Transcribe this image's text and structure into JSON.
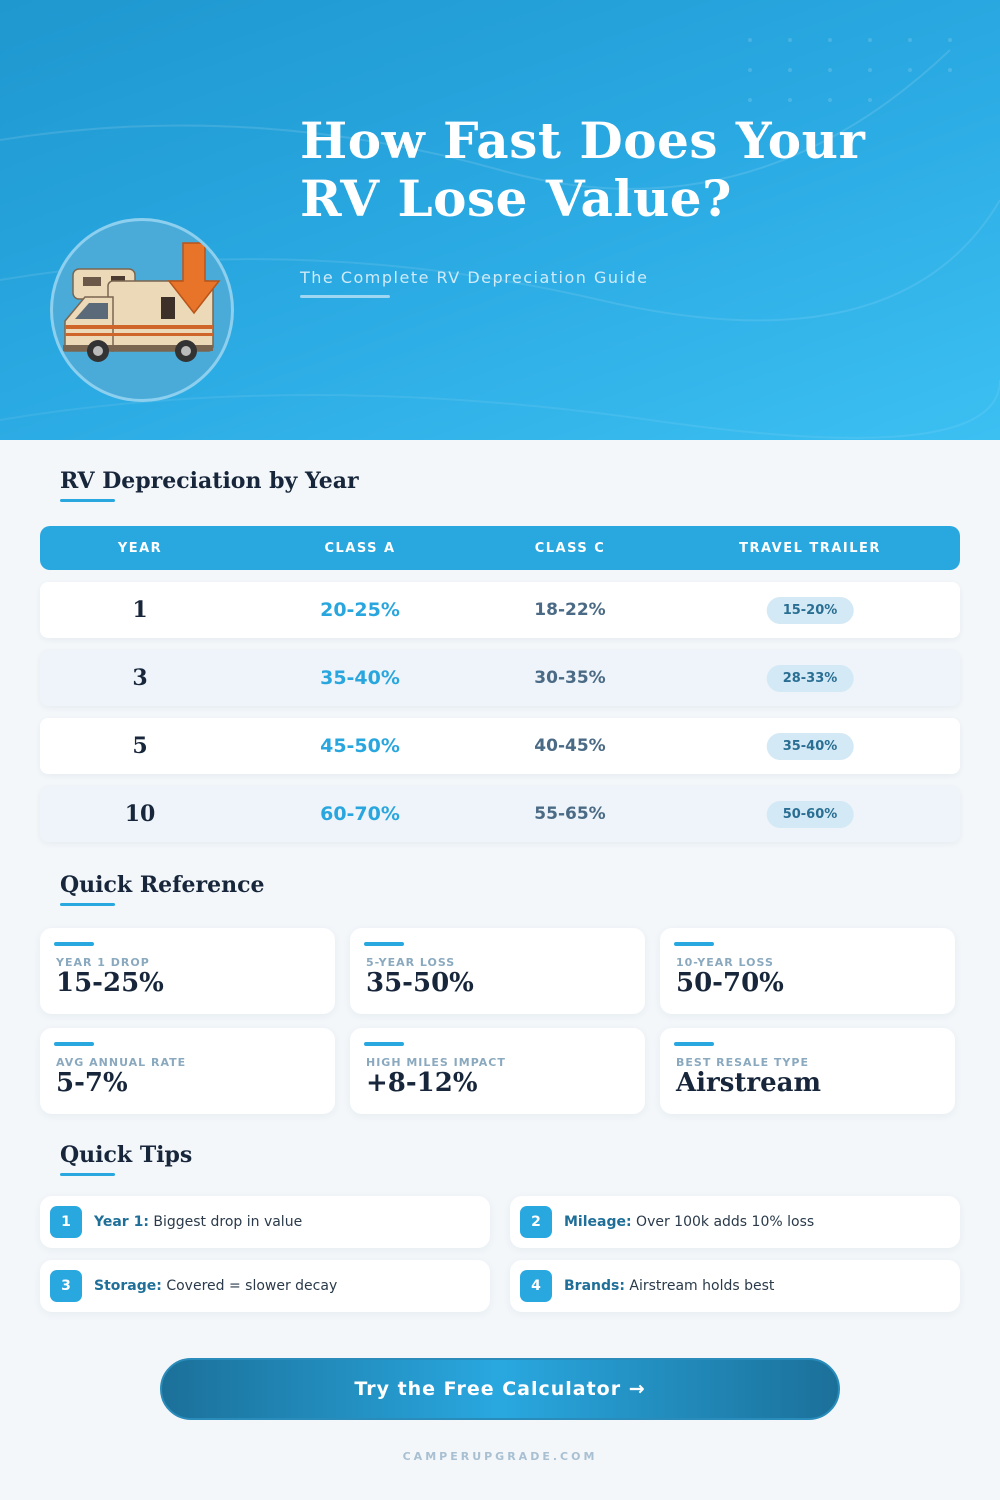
{
  "hero": {
    "title_line1": "How Fast Does Your",
    "title_line2": "RV Lose Value?",
    "subtitle": "The Complete RV Depreciation Guide",
    "illustration_icon": "rv-with-down-arrow-icon"
  },
  "table_section": {
    "title": "RV Depreciation by Year",
    "headers": [
      "YEAR",
      "CLASS A",
      "CLASS C",
      "TRAVEL TRAILER"
    ],
    "rows": [
      {
        "year": "1",
        "class_a": "20-25%",
        "class_c": "18-22%",
        "travel_trailer": "15-20%"
      },
      {
        "year": "3",
        "class_a": "35-40%",
        "class_c": "30-35%",
        "travel_trailer": "28-33%"
      },
      {
        "year": "5",
        "class_a": "45-50%",
        "class_c": "40-45%",
        "travel_trailer": "35-40%"
      },
      {
        "year": "10",
        "class_a": "60-70%",
        "class_c": "55-65%",
        "travel_trailer": "50-60%"
      }
    ]
  },
  "quick_reference": {
    "title": "Quick Reference",
    "cards": [
      {
        "label": "YEAR 1 DROP",
        "value": "15-25%"
      },
      {
        "label": "5-YEAR LOSS",
        "value": "35-50%"
      },
      {
        "label": "10-YEAR LOSS",
        "value": "50-70%"
      },
      {
        "label": "AVG ANNUAL RATE",
        "value": "5-7%"
      },
      {
        "label": "HIGH MILES IMPACT",
        "value": "+8-12%"
      },
      {
        "label": "BEST RESALE TYPE",
        "value": "Airstream"
      }
    ]
  },
  "quick_tips": {
    "title": "Quick Tips",
    "tips": [
      {
        "number": "1",
        "label": "Year 1:",
        "text": "Biggest drop in value"
      },
      {
        "number": "2",
        "label": "Mileage:",
        "text": "Over 100k adds 10% loss"
      },
      {
        "number": "3",
        "label": "Storage:",
        "text": "Covered = slower decay"
      },
      {
        "number": "4",
        "label": "Brands:",
        "text": "Airstream holds best"
      }
    ]
  },
  "cta": {
    "label": "Try the Free Calculator →"
  },
  "footer": {
    "text": "CAMPERUPGRADE.COM"
  },
  "colors": {
    "accent": "#29a8e0",
    "dark": "#17263a",
    "badge_bg": "#d3e9f5",
    "cta": "#1b7099",
    "arrow": "#e8742a"
  }
}
